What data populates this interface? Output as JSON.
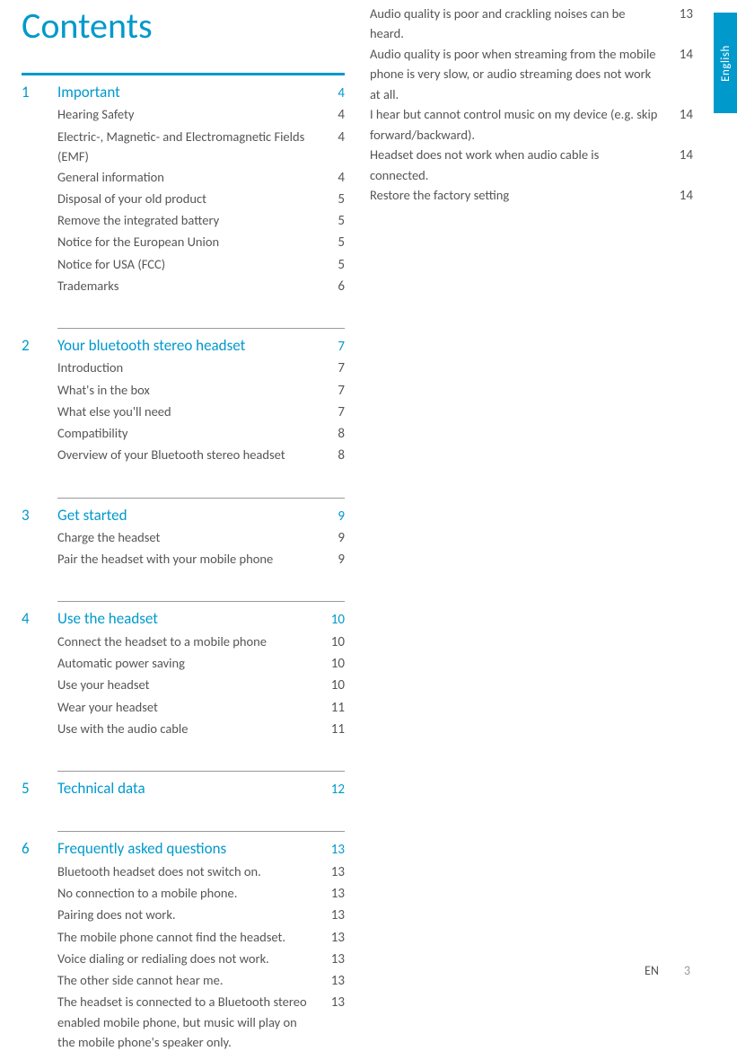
{
  "colors": {
    "accent": "#0099cc",
    "text": "#555555",
    "muted": "#888888",
    "tab_bg": "#0099cc",
    "tab_text": "#ffffff"
  },
  "title": "Contents",
  "language_tab": "English",
  "footer": {
    "lang": "EN",
    "page": "3"
  },
  "sections": [
    {
      "num": "1",
      "title": "Important",
      "page": "4",
      "items": [
        {
          "text": "Hearing Safety",
          "page": "4"
        },
        {
          "text": "Electric-, Magnetic- and Electromagnetic Fields (EMF)",
          "page": "4"
        },
        {
          "text": "General information",
          "page": "4"
        },
        {
          "text": "Disposal of your old product",
          "page": "5"
        },
        {
          "text": "Remove the integrated battery",
          "page": "5"
        },
        {
          "text": "Notice for the European Union",
          "page": "5"
        },
        {
          "text": "Notice for USA (FCC)",
          "page": "5"
        },
        {
          "text": "Trademarks",
          "page": "6"
        }
      ]
    },
    {
      "num": "2",
      "title": "Your bluetooth stereo headset",
      "page": "7",
      "items": [
        {
          "text": "Introduction",
          "page": "7"
        },
        {
          "text": "What's in the box",
          "page": "7"
        },
        {
          "text": "What else you'll need",
          "page": "7"
        },
        {
          "text": "Compatibility",
          "page": "8"
        },
        {
          "text": "Overview of your Bluetooth stereo headset",
          "page": "8"
        }
      ]
    },
    {
      "num": "3",
      "title": "Get started",
      "page": "9",
      "items": [
        {
          "text": "Charge the headset",
          "page": "9"
        },
        {
          "text": "Pair the headset with your mobile phone",
          "page": "9"
        }
      ]
    },
    {
      "num": "4",
      "title": "Use the headset",
      "page": "10",
      "items": [
        {
          "text": "Connect the headset to a mobile phone",
          "page": "10"
        },
        {
          "text": "Automatic power saving",
          "page": "10"
        },
        {
          "text": "Use your headset",
          "page": "10"
        },
        {
          "text": "Wear your headset",
          "page": "11"
        },
        {
          "text": "Use with the audio cable",
          "page": "11"
        }
      ]
    },
    {
      "num": "5",
      "title": "Technical data",
      "page": "12",
      "items": []
    },
    {
      "num": "6",
      "title": "Frequently asked questions",
      "page": "13",
      "items": [
        {
          "text": "Bluetooth headset does not switch on.",
          "page": "13"
        },
        {
          "text": "No connection to a mobile phone.",
          "page": "13"
        },
        {
          "text": "Pairing does not work.",
          "page": "13"
        },
        {
          "text": "The mobile phone cannot find the headset.",
          "page": "13"
        },
        {
          "text": "Voice dialing or redialing does not work.",
          "page": "13"
        },
        {
          "text": "The other side cannot hear me.",
          "page": "13"
        },
        {
          "text": "The headset is connected to a Bluetooth stereo enabled mobile phone, but music will play on the mobile phone's speaker only.",
          "page": "13"
        }
      ]
    }
  ],
  "overflow_items": [
    {
      "text": "Audio quality is poor and crackling noises can be heard.",
      "page": "13"
    },
    {
      "text": "Audio quality is poor when streaming from the mobile phone is very slow, or audio streaming does not work at all.",
      "page": "14"
    },
    {
      "text": "I hear but cannot control music on my device (e.g. skip forward/backward).",
      "page": "14"
    },
    {
      "text": "Headset does not work when audio cable is connected.",
      "page": "14"
    },
    {
      "text": "Restore the factory setting",
      "page": "14"
    }
  ]
}
